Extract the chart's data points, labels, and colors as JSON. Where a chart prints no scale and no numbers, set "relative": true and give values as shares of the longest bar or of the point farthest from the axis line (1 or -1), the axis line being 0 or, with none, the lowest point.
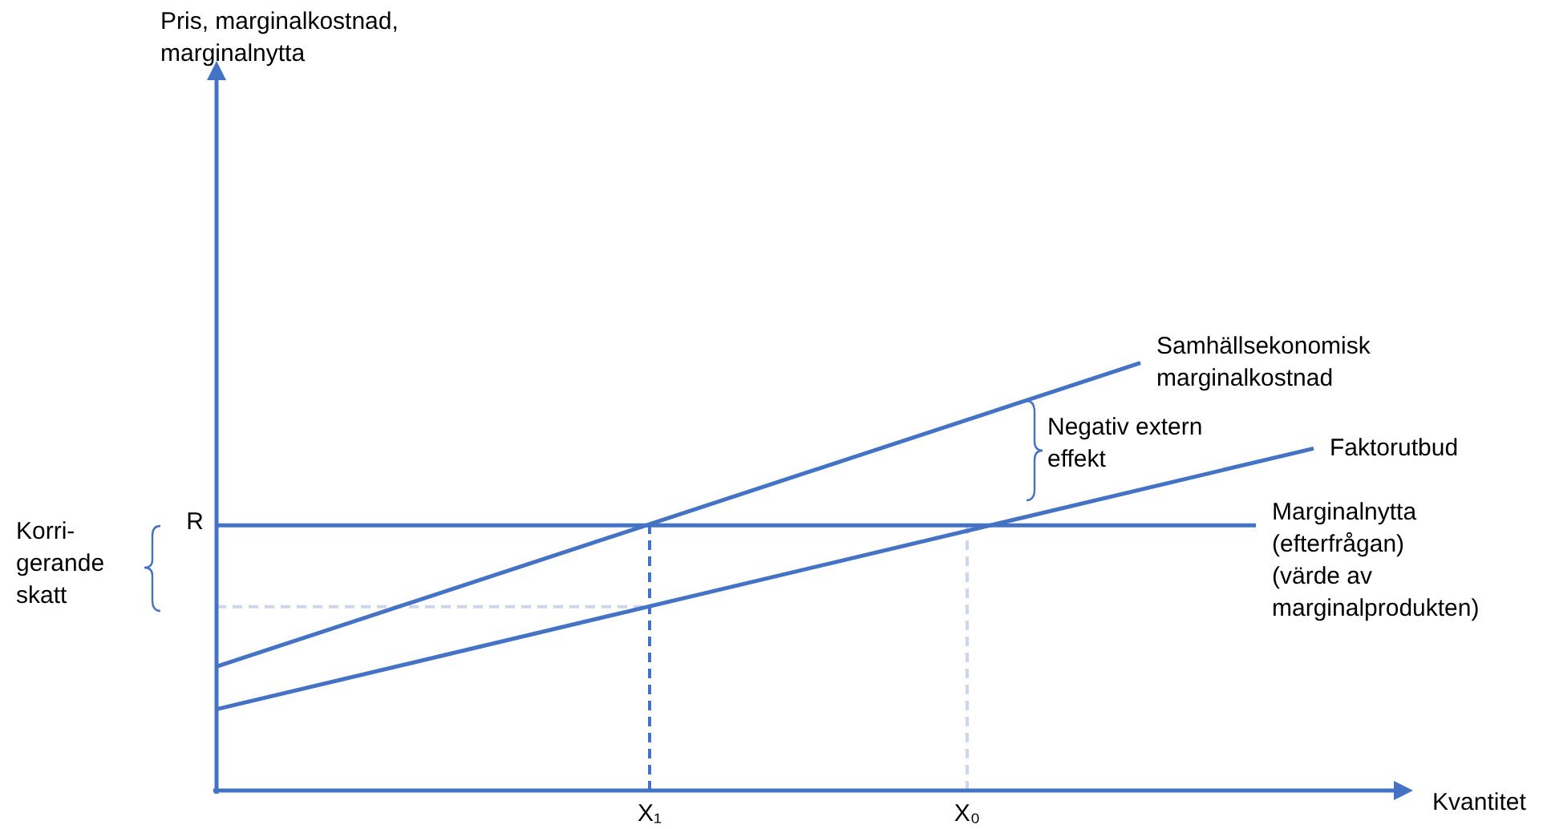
{
  "chart_data": {
    "type": "line",
    "relative": true,
    "xlabel": "Kvantitet",
    "categories": [
      null,
      null,
      null,
      null,
      null,
      null,
      null,
      null,
      null,
      null,
      null,
      null,
      null,
      null,
      null,
      "X₁",
      null,
      null,
      null,
      null,
      null,
      null,
      null,
      null,
      null,
      null,
      "X₀",
      null,
      null,
      null,
      null,
      null,
      null,
      null,
      null,
      null,
      null,
      null,
      null,
      null,
      null,
      null
    ],
    "series": [
      {
        "name": "Samhällsekonomisk\nmarginalkostnad",
        "color": "#4472c4",
        "values": [
          0.29,
          null,
          null,
          null,
          null,
          null,
          null,
          null,
          null,
          null,
          null,
          null,
          null,
          null,
          null,
          null,
          null,
          null,
          null,
          null,
          null,
          null,
          null,
          null,
          null,
          null,
          null,
          null,
          null,
          null,
          null,
          null,
          1.0,
          null,
          null,
          null,
          null,
          null,
          null,
          null,
          null,
          null
        ]
      },
      {
        "name": "Faktorutbud",
        "color": "#4472c4",
        "values": [
          0.19,
          null,
          null,
          null,
          null,
          null,
          null,
          null,
          null,
          null,
          null,
          null,
          null,
          null,
          null,
          null,
          null,
          null,
          null,
          null,
          null,
          null,
          null,
          null,
          null,
          null,
          null,
          null,
          null,
          null,
          null,
          null,
          null,
          null,
          null,
          null,
          null,
          null,
          0.8,
          null,
          null,
          null
        ]
      },
      {
        "name": "Marginalnytta\n(efterfrågan)\n(värde av\nmarginalprodukten)",
        "color": "#4472c4",
        "values": [
          0.62,
          null,
          null,
          null,
          null,
          null,
          null,
          null,
          null,
          null,
          null,
          null,
          null,
          null,
          null,
          null,
          null,
          null,
          null,
          null,
          null,
          null,
          null,
          null,
          null,
          null,
          null,
          null,
          null,
          null,
          null,
          null,
          null,
          null,
          null,
          null,
          0.62,
          null,
          null,
          null,
          null,
          null
        ]
      }
    ],
    "ref_lines": [
      {
        "axis": "x",
        "value": "X₁",
        "color": "#4472c4",
        "line_style": "dashed"
      },
      {
        "axis": "x",
        "value": "X₀",
        "color": "#cdd6ec",
        "line_style": "dashed"
      },
      {
        "axis": "y",
        "value": 0.43,
        "color": "#cdd6ec",
        "line_style": "dashed"
      }
    ],
    "annotations": [
      "R",
      "Negativ extern\neffekt",
      "Korri-\ngerande\nskatt",
      "Pris, marginalkostnad,\nmarginalnytta"
    ],
    "legend": false,
    "grid": false,
    "marker": "none"
  }
}
